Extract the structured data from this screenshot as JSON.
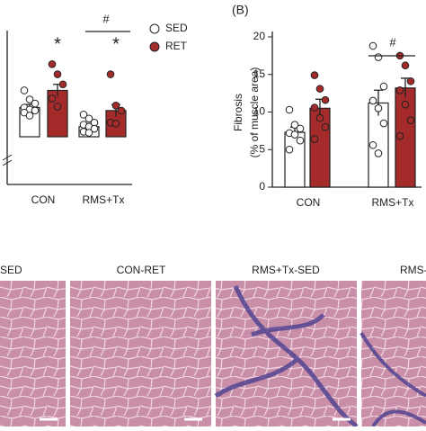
{
  "chart_data": [
    {
      "type": "bar",
      "categories": [
        "CON",
        "RMS+Tx"
      ],
      "ylim": [
        0,
        100
      ],
      "series": [
        {
          "name": "SED",
          "color": "#ffffff",
          "values": [
            29,
            10
          ],
          "errors": [
            3,
            3
          ],
          "points": [
            [
              46,
              37,
              33,
              29,
              27,
              26,
              24,
              21
            ],
            [
              22,
              18,
              14,
              12,
              10,
              8,
              5,
              4
            ]
          ]
        },
        {
          "name": "RET",
          "color": "#a52a2a",
          "values": [
            46,
            26
          ],
          "errors": [
            6,
            6
          ],
          "points": [
            [
              72,
              62,
              52,
              38,
              30
            ],
            [
              62,
              31,
              26,
              14,
              13
            ]
          ]
        }
      ],
      "annotations": [
        "*",
        "*",
        "#"
      ]
    },
    {
      "type": "bar",
      "title": "(B)",
      "ylabel": [
        "Fibrosis",
        "(% of muscle area)"
      ],
      "categories": [
        "CON",
        "RMS+Tx"
      ],
      "ylim": [
        0,
        20
      ],
      "yticks": [
        0,
        5,
        10,
        15,
        20
      ],
      "series": [
        {
          "name": "SED",
          "color": "#ffffff",
          "values": [
            7.3,
            11.2
          ],
          "errors": [
            0.7,
            1.7
          ],
          "points": [
            [
              10.3,
              8.3,
              7.8,
              7.2,
              7.0,
              6.2,
              5.0
            ],
            [
              18.8,
              17.3,
              13.4,
              11.5,
              10.5,
              8.5,
              5.6,
              4.5
            ]
          ]
        },
        {
          "name": "RET",
          "color": "#a52a2a",
          "values": [
            10.5,
            13.2
          ],
          "errors": [
            1.2,
            1.3
          ],
          "points": [
            [
              14.9,
              13.1,
              11.6,
              10.6,
              9.2,
              8.0,
              6.4
            ],
            [
              17.5,
              16.2,
              14.1,
              12.9,
              11.0,
              8.9,
              6.8
            ]
          ]
        }
      ],
      "annotations": [
        "#"
      ]
    }
  ],
  "histology": {
    "panels": [
      "SED",
      "CON-RET",
      "RMS+Tx-SED",
      "RMS-"
    ]
  }
}
